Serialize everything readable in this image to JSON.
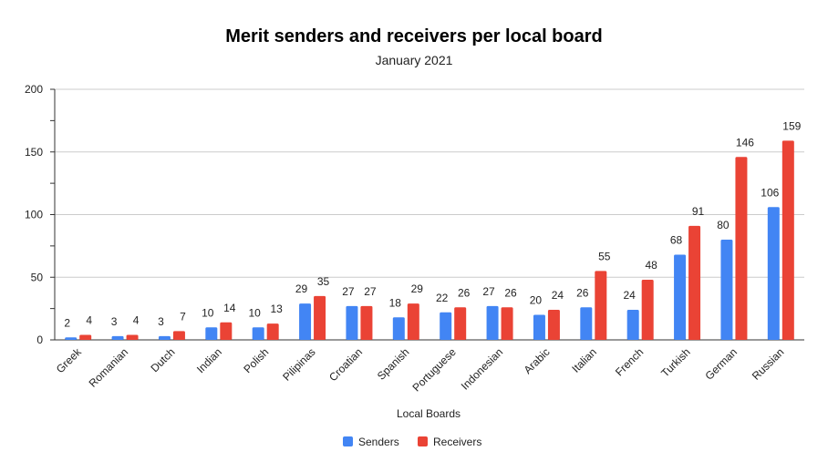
{
  "chart_data": {
    "type": "bar",
    "title": "Merit senders and receivers per local board",
    "subtitle": "January 2021",
    "xlabel": "Local Boards",
    "ylabel": "",
    "ylim": [
      0,
      200
    ],
    "yticks": [
      0,
      50,
      100,
      150,
      200
    ],
    "grid": true,
    "legend_position": "bottom",
    "categories": [
      "Greek",
      "Romanian",
      "Dutch",
      "Indian",
      "Polish",
      "Pilipinas",
      "Croatian",
      "Spanish",
      "Portuguese",
      "Indonesian",
      "Arabic",
      "Italian",
      "French",
      "Turkish",
      "German",
      "Russian"
    ],
    "series": [
      {
        "name": "Senders",
        "color": "#4285f4",
        "values": [
          2,
          3,
          3,
          10,
          10,
          29,
          27,
          18,
          22,
          27,
          20,
          26,
          24,
          68,
          80,
          106
        ]
      },
      {
        "name": "Receivers",
        "color": "#ea4335",
        "values": [
          4,
          4,
          7,
          14,
          13,
          35,
          27,
          29,
          26,
          26,
          24,
          55,
          48,
          91,
          146,
          159
        ]
      }
    ]
  }
}
